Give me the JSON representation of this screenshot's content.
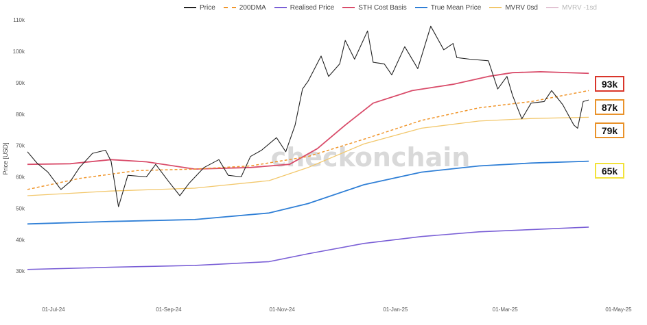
{
  "legend": [
    {
      "name": "Price",
      "color": "#222222",
      "style": "solid",
      "dim": false
    },
    {
      "name": "200DMA",
      "color": "#f0952a",
      "style": "dashed",
      "dim": false
    },
    {
      "name": "Realised Price",
      "color": "#7a5fd6",
      "style": "solid",
      "dim": false
    },
    {
      "name": "STH Cost Basis",
      "color": "#d94c6a",
      "style": "solid",
      "dim": false
    },
    {
      "name": "True Mean Price",
      "color": "#2f7fd6",
      "style": "solid",
      "dim": false
    },
    {
      "name": "MVRV 0sd",
      "color": "#f2c76b",
      "style": "solid",
      "dim": false
    },
    {
      "name": "MVRV -1sd",
      "color": "#e2c3d3",
      "style": "solid",
      "dim": true
    }
  ],
  "badges": [
    {
      "label": "93k",
      "border": "#d9352a"
    },
    {
      "label": "87k",
      "border": "#e9922a"
    },
    {
      "label": "79k",
      "border": "#e9922a"
    },
    {
      "label": "65k",
      "border": "#f2e23a"
    }
  ],
  "watermark": "checkonchain",
  "chart_data": {
    "type": "line",
    "ylabel": "Price [USD]",
    "xlabel": "",
    "ylim": [
      20000,
      112000
    ],
    "xlim": [
      "2024-06-17",
      "2025-05-06"
    ],
    "grid": false,
    "legend_position": "top",
    "y_ticks": [
      30000,
      40000,
      50000,
      60000,
      70000,
      80000,
      90000,
      100000,
      110000
    ],
    "y_tick_labels": [
      "30k",
      "40k",
      "50k",
      "60k",
      "70k",
      "80k",
      "90k",
      "100k",
      "110k"
    ],
    "x_tick_labels": [
      "01-Jul-24",
      "01-Sep-24",
      "01-Nov-24",
      "01-Jan-25",
      "01-Mar-25",
      "01-May-25"
    ],
    "x_tick_dates": [
      "2024-07-01",
      "2024-09-01",
      "2024-11-01",
      "2025-01-01",
      "2025-03-01",
      "2025-05-01"
    ],
    "series": [
      {
        "name": "Price",
        "color": "#222222",
        "dash": "",
        "width": 1.1,
        "points": [
          [
            "2024-06-17",
            68000
          ],
          [
            "2024-06-22",
            64500
          ],
          [
            "2024-06-28",
            61500
          ],
          [
            "2024-07-05",
            56000
          ],
          [
            "2024-07-10",
            58500
          ],
          [
            "2024-07-15",
            63000
          ],
          [
            "2024-07-22",
            67500
          ],
          [
            "2024-07-29",
            68500
          ],
          [
            "2024-08-01",
            65000
          ],
          [
            "2024-08-05",
            50500
          ],
          [
            "2024-08-10",
            60500
          ],
          [
            "2024-08-20",
            60000
          ],
          [
            "2024-08-25",
            64000
          ],
          [
            "2024-09-01",
            58500
          ],
          [
            "2024-09-07",
            54000
          ],
          [
            "2024-09-12",
            58000
          ],
          [
            "2024-09-20",
            63000
          ],
          [
            "2024-09-28",
            65500
          ],
          [
            "2024-10-03",
            60500
          ],
          [
            "2024-10-10",
            60000
          ],
          [
            "2024-10-15",
            66500
          ],
          [
            "2024-10-21",
            68500
          ],
          [
            "2024-10-29",
            72500
          ],
          [
            "2024-11-03",
            68000
          ],
          [
            "2024-11-08",
            76500
          ],
          [
            "2024-11-12",
            88000
          ],
          [
            "2024-11-15",
            90500
          ],
          [
            "2024-11-22",
            98500
          ],
          [
            "2024-11-26",
            92000
          ],
          [
            "2024-12-02",
            96000
          ],
          [
            "2024-12-05",
            103500
          ],
          [
            "2024-12-10",
            97500
          ],
          [
            "2024-12-17",
            106500
          ],
          [
            "2024-12-20",
            96500
          ],
          [
            "2024-12-26",
            96000
          ],
          [
            "2024-12-30",
            92500
          ],
          [
            "2025-01-06",
            101500
          ],
          [
            "2025-01-13",
            94500
          ],
          [
            "2025-01-20",
            108000
          ],
          [
            "2025-01-27",
            100500
          ],
          [
            "2025-02-01",
            102500
          ],
          [
            "2025-02-03",
            98000
          ],
          [
            "2025-02-10",
            97500
          ],
          [
            "2025-02-20",
            97000
          ],
          [
            "2025-02-25",
            88000
          ],
          [
            "2025-03-02",
            92000
          ],
          [
            "2025-03-05",
            86000
          ],
          [
            "2025-03-10",
            78500
          ],
          [
            "2025-03-15",
            83500
          ],
          [
            "2025-03-22",
            84000
          ],
          [
            "2025-03-26",
            87500
          ],
          [
            "2025-04-01",
            83000
          ],
          [
            "2025-04-07",
            76500
          ],
          [
            "2025-04-09",
            75500
          ],
          [
            "2025-04-12",
            84000
          ],
          [
            "2025-04-15",
            84500
          ]
        ]
      },
      {
        "name": "200DMA",
        "color": "#f0952a",
        "dash": "4,3",
        "width": 1.5,
        "points": [
          [
            "2024-06-17",
            56000
          ],
          [
            "2024-07-15",
            59500
          ],
          [
            "2024-08-15",
            62000
          ],
          [
            "2024-09-15",
            62500
          ],
          [
            "2024-10-15",
            63500
          ],
          [
            "2024-11-15",
            66500
          ],
          [
            "2024-12-15",
            72000
          ],
          [
            "2025-01-15",
            78000
          ],
          [
            "2025-02-15",
            82000
          ],
          [
            "2025-03-15",
            84000
          ],
          [
            "2025-04-15",
            87500
          ]
        ]
      },
      {
        "name": "Realised Price",
        "color": "#7a5fd6",
        "dash": "",
        "width": 1.6,
        "points": [
          [
            "2024-06-17",
            30500
          ],
          [
            "2024-08-01",
            31200
          ],
          [
            "2024-09-15",
            31800
          ],
          [
            "2024-10-25",
            33000
          ],
          [
            "2024-11-15",
            35500
          ],
          [
            "2024-12-15",
            38800
          ],
          [
            "2025-01-15",
            41000
          ],
          [
            "2025-02-15",
            42500
          ],
          [
            "2025-03-15",
            43200
          ],
          [
            "2025-04-15",
            44000
          ]
        ]
      },
      {
        "name": "STH Cost Basis",
        "color": "#d94c6a",
        "dash": "",
        "width": 1.8,
        "points": [
          [
            "2024-06-17",
            64000
          ],
          [
            "2024-07-10",
            64200
          ],
          [
            "2024-08-01",
            65500
          ],
          [
            "2024-08-20",
            64800
          ],
          [
            "2024-09-15",
            62500
          ],
          [
            "2024-10-15",
            63000
          ],
          [
            "2024-11-05",
            64000
          ],
          [
            "2024-11-20",
            69000
          ],
          [
            "2024-12-05",
            76500
          ],
          [
            "2024-12-20",
            83500
          ],
          [
            "2025-01-10",
            87500
          ],
          [
            "2025-02-01",
            89500
          ],
          [
            "2025-02-20",
            92000
          ],
          [
            "2025-03-05",
            93200
          ],
          [
            "2025-03-20",
            93500
          ],
          [
            "2025-04-15",
            93000
          ]
        ]
      },
      {
        "name": "True Mean Price",
        "color": "#2f7fd6",
        "dash": "",
        "width": 1.8,
        "points": [
          [
            "2024-06-17",
            45000
          ],
          [
            "2024-08-01",
            45800
          ],
          [
            "2024-09-15",
            46400
          ],
          [
            "2024-10-25",
            48500
          ],
          [
            "2024-11-15",
            51500
          ],
          [
            "2024-12-15",
            57500
          ],
          [
            "2025-01-15",
            61500
          ],
          [
            "2025-02-15",
            63500
          ],
          [
            "2025-03-15",
            64400
          ],
          [
            "2025-04-15",
            65000
          ]
        ]
      },
      {
        "name": "MVRV 0sd",
        "color": "#f2c76b",
        "dash": "",
        "width": 1.3,
        "points": [
          [
            "2024-06-17",
            54000
          ],
          [
            "2024-08-01",
            55500
          ],
          [
            "2024-09-15",
            56400
          ],
          [
            "2024-10-25",
            58800
          ],
          [
            "2024-11-15",
            63000
          ],
          [
            "2024-12-15",
            70500
          ],
          [
            "2025-01-15",
            75500
          ],
          [
            "2025-02-15",
            77800
          ],
          [
            "2025-03-15",
            78600
          ],
          [
            "2025-04-15",
            79000
          ]
        ]
      }
    ]
  }
}
